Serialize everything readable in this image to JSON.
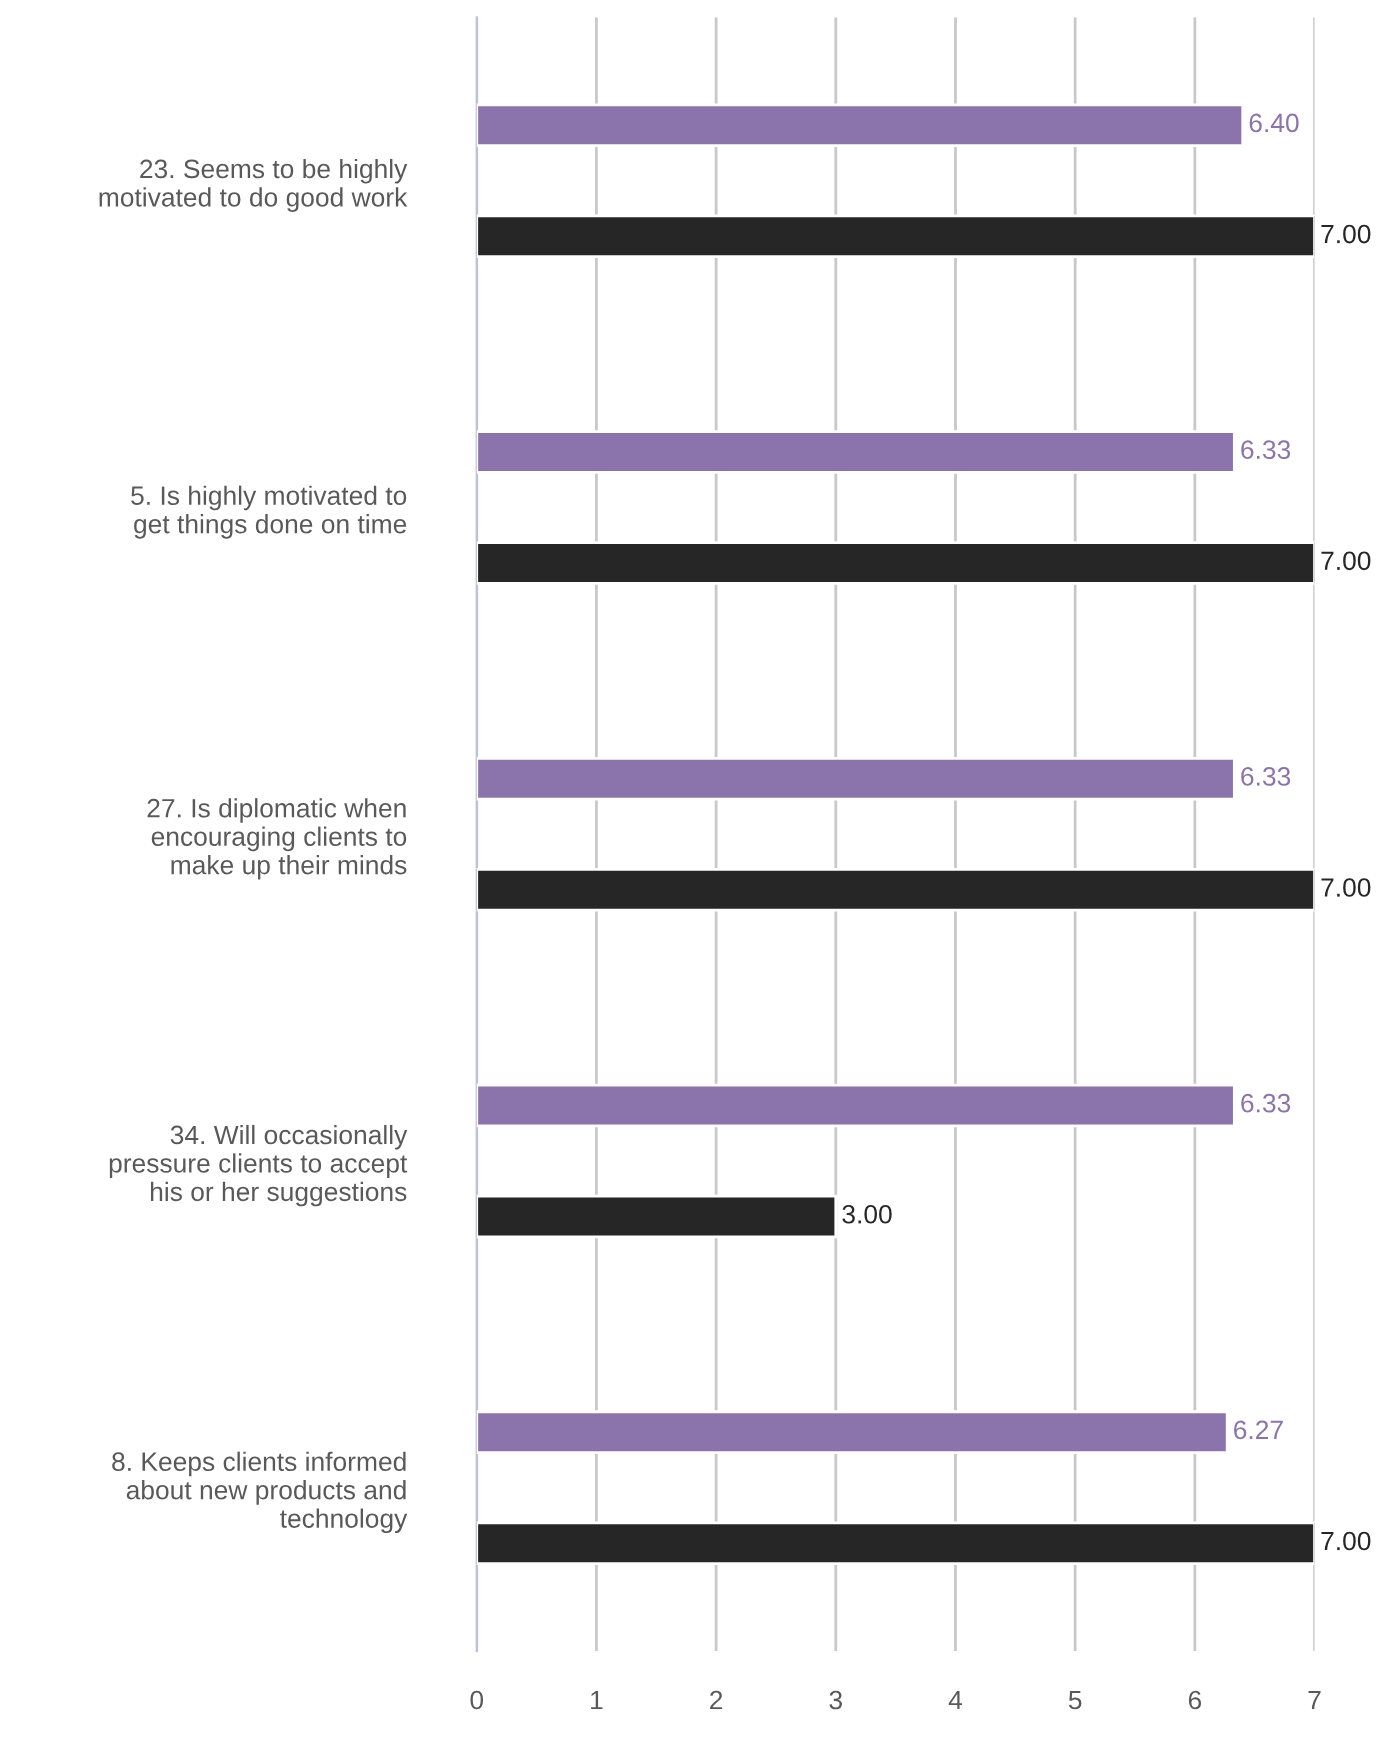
{
  "chart_data": {
    "type": "bar",
    "orientation": "horizontal",
    "categories": [
      "23. Seems to be highly\nmotivated to do good work",
      "5. Is highly motivated to\nget things done on time",
      "27. Is diplomatic when\nencouraging clients to\nmake up their minds",
      "34. Will occasionally\npressure clients to accept\nhis or her suggestions",
      "8. Keeps clients informed\nabout new products and\ntechnology"
    ],
    "series": [
      {
        "color": "#8b74ac",
        "values": [
          6.4,
          6.33,
          6.33,
          6.33,
          6.27
        ],
        "value_labels": [
          "6.40",
          "6.33",
          "6.33",
          "6.33",
          "6.27"
        ]
      },
      {
        "color": "#262626",
        "values": [
          7,
          7,
          7,
          3,
          7
        ],
        "value_labels": [
          "7.00",
          "7.00",
          "7.00",
          "3.00",
          "7.00"
        ]
      }
    ],
    "xlim": [
      0,
      7
    ],
    "xticks": [
      0,
      1,
      2,
      3,
      4,
      5,
      6,
      7
    ],
    "grid": "x"
  }
}
